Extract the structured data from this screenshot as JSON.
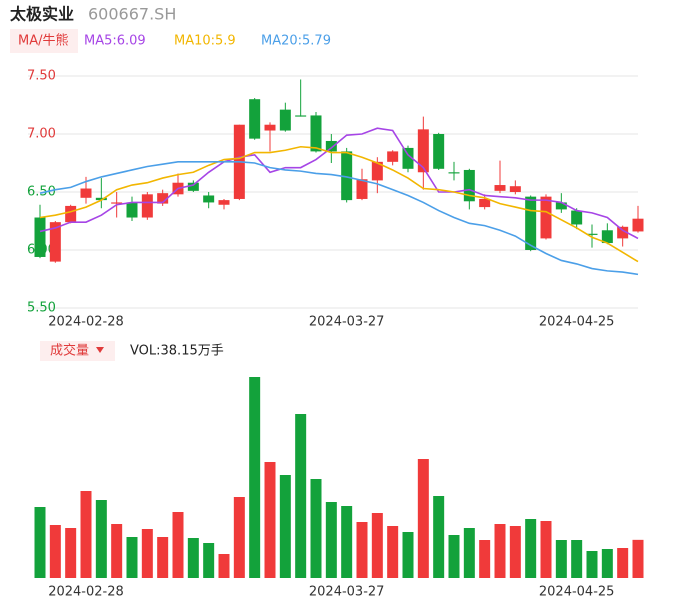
{
  "chart_data": [
    {
      "type": "candlestick",
      "title": "太极实业",
      "subtitle": "600667.SH",
      "legend_title": "MA/牛熊",
      "categories": [
        null,
        null,
        null,
        "2024-02-28",
        null,
        null,
        null,
        null,
        null,
        null,
        null,
        null,
        null,
        null,
        null,
        null,
        null,
        null,
        null,
        null,
        "2024-03-27",
        null,
        null,
        null,
        null,
        null,
        null,
        null,
        null,
        null,
        null,
        null,
        null,
        null,
        null,
        "2024-04-25",
        null,
        null,
        null,
        null
      ],
      "open": [
        6.28,
        5.9,
        6.24,
        6.45,
        6.45,
        6.4,
        6.41,
        6.28,
        6.4,
        6.48,
        6.58,
        6.47,
        6.39,
        6.44,
        7.3,
        7.03,
        7.21,
        7.16,
        7.16,
        6.94,
        6.85,
        6.44,
        6.6,
        6.76,
        6.88,
        6.67,
        7.0,
        6.67,
        6.69,
        6.37,
        6.51,
        6.5,
        6.46,
        6.1,
        6.41,
        6.34,
        6.14,
        6.17,
        6.1,
        6.16
      ],
      "high": [
        6.39,
        6.25,
        6.39,
        6.63,
        6.62,
        6.5,
        6.46,
        6.5,
        6.52,
        6.66,
        6.6,
        6.5,
        6.44,
        7.08,
        7.31,
        7.1,
        7.27,
        7.47,
        7.19,
        7.0,
        6.88,
        6.7,
        6.8,
        6.86,
        6.9,
        7.15,
        7.01,
        6.76,
        6.7,
        6.48,
        6.77,
        6.6,
        6.47,
        6.48,
        6.49,
        6.36,
        6.22,
        6.23,
        6.21,
        6.38
      ],
      "low": [
        5.93,
        5.89,
        6.23,
        6.4,
        6.36,
        6.28,
        6.25,
        6.26,
        6.38,
        6.46,
        6.5,
        6.36,
        6.35,
        6.43,
        6.95,
        6.85,
        7.02,
        7.15,
        6.84,
        6.75,
        6.41,
        6.43,
        6.49,
        6.73,
        6.67,
        6.52,
        6.69,
        6.6,
        6.35,
        6.35,
        6.49,
        6.48,
        5.99,
        6.09,
        6.32,
        6.18,
        6.02,
        6.05,
        6.03,
        6.15
      ],
      "close": [
        5.94,
        6.24,
        6.38,
        6.53,
        6.43,
        6.41,
        6.28,
        6.48,
        6.49,
        6.58,
        6.51,
        6.41,
        6.43,
        7.08,
        6.96,
        7.08,
        7.03,
        7.15,
        6.85,
        6.85,
        6.43,
        6.61,
        6.76,
        6.85,
        6.7,
        7.04,
        6.7,
        6.66,
        6.42,
        6.44,
        6.56,
        6.55,
        6.0,
        6.46,
        6.35,
        6.22,
        6.13,
        6.06,
        6.2,
        6.27
      ],
      "up_color": "#f03a3a",
      "down_color": "#13a23b",
      "series": [
        {
          "name": "MA5:6.09",
          "color": "#a645e6",
          "values": [
            6.16,
            6.19,
            6.24,
            6.24,
            6.3,
            6.39,
            6.41,
            6.41,
            6.41,
            6.53,
            6.56,
            6.67,
            6.76,
            6.8,
            6.82,
            6.67,
            6.71,
            6.71,
            6.78,
            6.88,
            6.99,
            7.0,
            7.05,
            7.03,
            6.82,
            6.71,
            6.5,
            6.5,
            6.52,
            6.47,
            6.46,
            6.45,
            6.43,
            6.43,
            6.41,
            6.34,
            6.32,
            6.28,
            6.17,
            6.1
          ]
        },
        {
          "name": "MA10:5.9",
          "color": "#f2b600",
          "values": [
            6.28,
            6.3,
            6.33,
            6.37,
            6.43,
            6.52,
            6.56,
            6.58,
            6.62,
            6.65,
            6.67,
            6.73,
            6.78,
            6.79,
            6.84,
            6.84,
            6.86,
            6.89,
            6.88,
            6.84,
            6.84,
            6.8,
            6.75,
            6.69,
            6.62,
            6.53,
            6.52,
            6.5,
            6.47,
            6.45,
            6.4,
            6.37,
            6.34,
            6.33,
            6.26,
            6.19,
            6.11,
            6.06,
            5.98,
            5.9
          ]
        },
        {
          "name": "MA20:5.79",
          "color": "#4b9fe8",
          "values": [
            6.49,
            6.52,
            6.54,
            6.59,
            6.63,
            6.66,
            6.69,
            6.72,
            6.74,
            6.76,
            6.76,
            6.76,
            6.76,
            6.76,
            6.75,
            6.71,
            6.69,
            6.68,
            6.66,
            6.65,
            6.63,
            6.6,
            6.57,
            6.52,
            6.47,
            6.41,
            6.34,
            6.28,
            6.23,
            6.21,
            6.17,
            6.12,
            6.04,
            5.97,
            5.91,
            5.88,
            5.84,
            5.82,
            5.81,
            5.79
          ]
        }
      ],
      "ylim": [
        5.5,
        7.5
      ],
      "yticks": [
        {
          "value": 5.5,
          "label": "5.50"
        },
        {
          "value": 6.0,
          "label": "6.00"
        },
        {
          "value": 6.5,
          "label": "6.50"
        },
        {
          "value": 7.0,
          "label": "7.00"
        },
        {
          "value": 7.5,
          "label": "7.50"
        }
      ],
      "grid": true
    },
    {
      "type": "bar",
      "title": "成交量",
      "label": "VOL:38.15万手",
      "categories": [
        null,
        null,
        null,
        "2024-02-28",
        null,
        null,
        null,
        null,
        null,
        null,
        null,
        null,
        null,
        null,
        null,
        null,
        null,
        null,
        null,
        null,
        "2024-03-27",
        null,
        null,
        null,
        null,
        null,
        null,
        null,
        null,
        null,
        null,
        null,
        null,
        null,
        null,
        "2024-04-25",
        null,
        null,
        null,
        null
      ],
      "values": [
        71,
        53,
        50,
        87,
        78,
        54,
        41,
        49,
        41,
        66,
        40,
        35,
        24,
        81,
        201,
        116,
        103,
        164,
        99,
        76,
        72,
        56,
        65,
        52,
        46,
        119,
        82,
        43,
        50,
        38,
        54,
        52,
        59,
        57,
        38,
        38,
        27,
        29,
        30,
        38.15
      ]
    }
  ]
}
